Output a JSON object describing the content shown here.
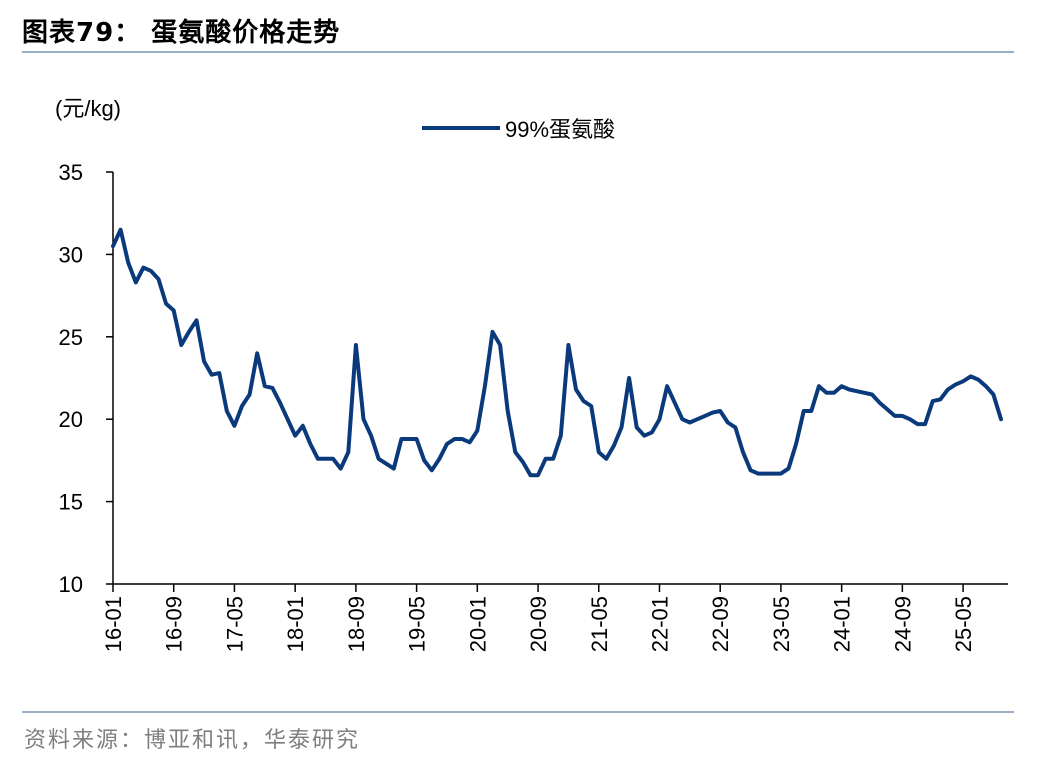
{
  "page": {
    "title": "图表79：  蛋氨酸价格走势",
    "source": "资料来源：博亚和讯，华泰研究"
  },
  "colors": {
    "line": "#0b3a7c",
    "rule": "#9aaec7",
    "source": "#7f7f7f",
    "axis": "#000000"
  },
  "chart_data": {
    "type": "line",
    "ylabel": "(元/kg)",
    "ylim": [
      10,
      35
    ],
    "yticks": [
      10,
      15,
      20,
      25,
      30,
      35
    ],
    "xticks": [
      "16-01",
      "16-09",
      "17-05",
      "18-01",
      "18-09",
      "19-05",
      "20-01",
      "20-09",
      "21-05",
      "22-01",
      "22-09",
      "23-05",
      "24-01",
      "24-09",
      "25-05"
    ],
    "grid": false,
    "legend_position": "top-center",
    "series": [
      {
        "name": "99%蛋氨酸",
        "x": [
          "16-01",
          "16-02",
          "16-03",
          "16-04",
          "16-05",
          "16-06",
          "16-07",
          "16-08",
          "16-09",
          "16-10",
          "16-11",
          "16-12",
          "17-01",
          "17-02",
          "17-03",
          "17-04",
          "17-05",
          "17-06",
          "17-07",
          "17-08",
          "17-09",
          "17-10",
          "17-11",
          "17-12",
          "18-01",
          "18-02",
          "18-03",
          "18-04",
          "18-05",
          "18-06",
          "18-07",
          "18-08",
          "18-09",
          "18-10",
          "18-11",
          "18-12",
          "19-01",
          "19-02",
          "19-03",
          "19-04",
          "19-05",
          "19-06",
          "19-07",
          "19-08",
          "19-09",
          "19-10",
          "19-11",
          "19-12",
          "20-01",
          "20-02",
          "20-03",
          "20-04",
          "20-05",
          "20-06",
          "20-07",
          "20-08",
          "20-09",
          "20-10",
          "20-11",
          "20-12",
          "21-01",
          "21-02",
          "21-03",
          "21-04",
          "21-05",
          "21-06",
          "21-07",
          "21-08",
          "21-09",
          "21-10",
          "21-11",
          "21-12",
          "22-01",
          "22-02",
          "22-03",
          "22-04",
          "22-05",
          "22-06",
          "22-07",
          "22-08",
          "22-09",
          "22-10",
          "22-11",
          "22-12",
          "23-01",
          "23-02",
          "23-03",
          "23-04",
          "23-05",
          "23-06",
          "23-07",
          "23-08",
          "23-09",
          "23-10",
          "23-11",
          "23-12",
          "24-01",
          "24-02",
          "24-03",
          "24-04",
          "24-05",
          "24-06",
          "24-07",
          "24-08",
          "24-09",
          "24-10",
          "24-11",
          "24-12",
          "25-01",
          "25-02",
          "25-03",
          "25-04",
          "25-05",
          "25-06",
          "25-07",
          "25-08",
          "25-09",
          "25-10"
        ],
        "values": [
          30.5,
          31.5,
          29.5,
          28.3,
          29.2,
          29.0,
          28.5,
          27.0,
          26.6,
          24.5,
          25.3,
          26.0,
          23.5,
          22.7,
          22.8,
          20.5,
          19.6,
          20.8,
          21.5,
          24.0,
          22.0,
          21.9,
          21.0,
          20.0,
          19.0,
          19.6,
          18.5,
          17.6,
          17.6,
          17.6,
          17.0,
          18.0,
          24.5,
          20.0,
          19.0,
          17.6,
          17.3,
          17.0,
          18.8,
          18.8,
          18.8,
          17.5,
          16.9,
          17.6,
          18.5,
          18.8,
          18.8,
          18.6,
          19.3,
          22.0,
          25.3,
          24.5,
          20.5,
          18.0,
          17.4,
          16.6,
          16.6,
          17.6,
          17.6,
          19.0,
          24.5,
          21.8,
          21.1,
          20.8,
          18.0,
          17.6,
          18.4,
          19.5,
          22.5,
          19.5,
          19.0,
          19.2,
          20.0,
          22.0,
          21.0,
          20.0,
          19.8,
          20.0,
          20.2,
          20.4,
          20.5,
          19.8,
          19.5,
          18.0,
          16.9,
          16.7,
          16.7,
          16.7,
          16.7,
          17.0,
          18.5,
          20.5,
          20.5,
          22.0,
          21.6,
          21.6,
          22.0,
          21.8,
          21.7,
          21.6,
          21.5,
          21.0,
          20.6,
          20.2,
          20.2,
          20.0,
          19.7,
          19.7,
          21.1,
          21.2,
          21.8,
          22.1,
          22.3,
          22.6,
          22.4,
          22.0,
          21.5,
          20.0
        ]
      }
    ]
  }
}
